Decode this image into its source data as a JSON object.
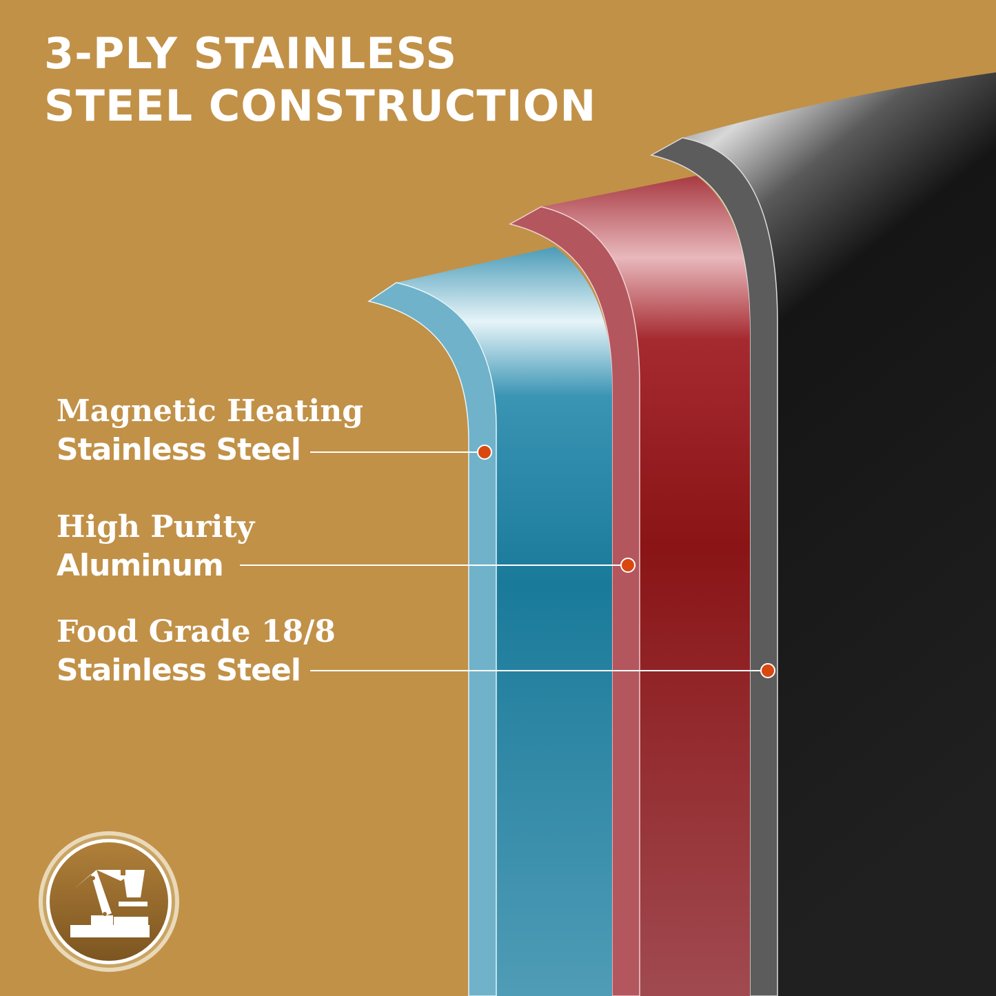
{
  "title": {
    "line1": "3-PLY STAINLESS",
    "line2": "STEEL CONSTRUCTION"
  },
  "layers": [
    {
      "line1": "Magnetic Heating",
      "line2": "Stainless Steel",
      "color": "#1f7f9f"
    },
    {
      "line1": "High Purity",
      "line2": "Aluminum",
      "color": "#8e1618"
    },
    {
      "line1": "Food Grade 18/8",
      "line2": "Stainless Steel",
      "color": "#141414"
    }
  ],
  "badge": {
    "icon": "robotic-arm-manufacturing-icon"
  },
  "colors": {
    "background": "#c19148",
    "marker": "#d9480f",
    "text": "#ffffff"
  }
}
